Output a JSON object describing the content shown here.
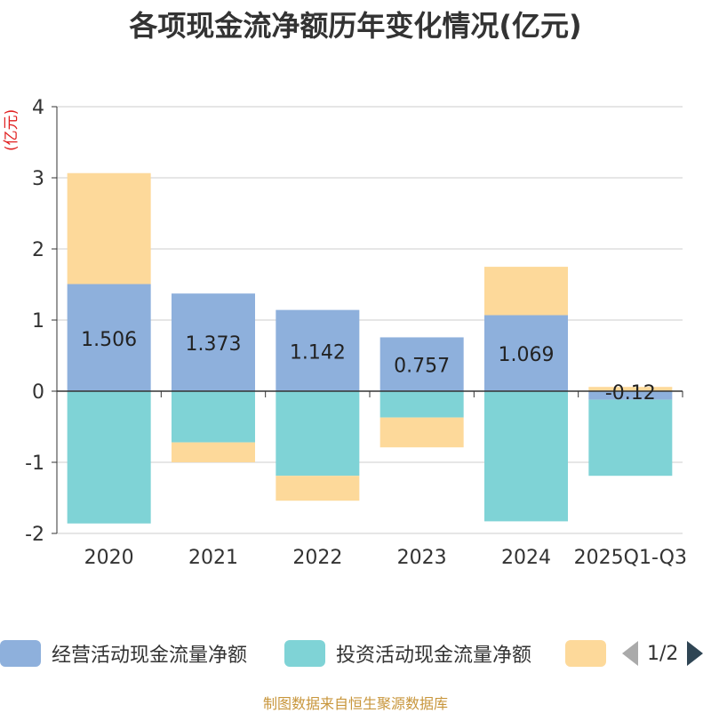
{
  "title": "各项现金流净额历年变化情况(亿元)",
  "unit_label": "(亿元)",
  "source": "制图数据来自恒生聚源数据库",
  "pager": {
    "page_text": "1/2"
  },
  "colors": {
    "operating": "#8eb0dc",
    "investing": "#7fd3d6",
    "financing": "#fdd99a",
    "grid": "#cccccc",
    "axis": "#333333",
    "text": "#333333"
  },
  "chart_data": {
    "type": "bar",
    "stacked": true,
    "title": "各项现金流净额历年变化情况(亿元)",
    "ylabel": "(亿元)",
    "ylim": [
      -2,
      4
    ],
    "yticks": [
      4,
      3,
      2,
      1,
      0,
      -1,
      -2
    ],
    "categories": [
      "2020",
      "2021",
      "2022",
      "2023",
      "2024",
      "2025Q1-Q3"
    ],
    "series": [
      {
        "key": "operating",
        "name": "经营活动现金流量净额",
        "values": [
          1.506,
          1.373,
          1.142,
          0.757,
          1.069,
          -0.12
        ],
        "labels": [
          "1.506",
          "1.373",
          "1.142",
          "0.757",
          "1.069",
          "-0.12"
        ]
      },
      {
        "key": "investing",
        "name": "投资活动现金流量净额",
        "values": [
          -1.86,
          -0.72,
          -1.19,
          -0.37,
          -1.83,
          -1.07
        ]
      },
      {
        "key": "financing",
        "name": "",
        "values": [
          1.56,
          -0.28,
          -0.35,
          -0.42,
          0.68,
          0.06
        ]
      }
    ]
  }
}
